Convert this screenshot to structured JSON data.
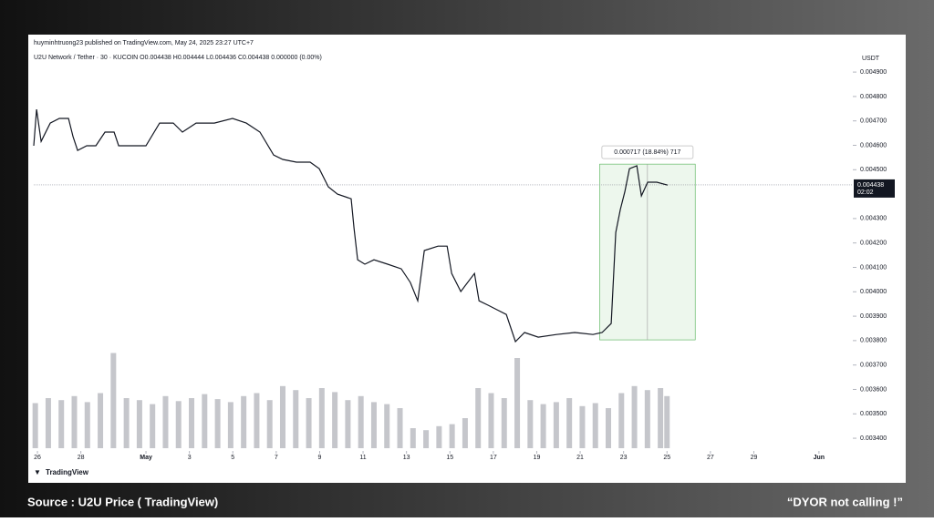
{
  "chart_data": {
    "type": "line",
    "header": "huyminhtruong23 published on TradingView.com, May 24, 2025 23:27 UTC+7",
    "title": "U2U Network / Tether · 30 · KUCOIN O0.004438 H0.004444 L0.004436 C0.004438 0.000000 (0.00%)",
    "y_axis_label": "USDT",
    "brand": "TradingView",
    "source": "Source : U2U Price ( TradingView)",
    "note": "“DYOR  not calling !”",
    "xlim": [
      -0.17,
      37.56
    ],
    "ylim": [
      0.003348,
      0.00499
    ],
    "xticks": [
      {
        "value": 0,
        "label": "26"
      },
      {
        "value": 2,
        "label": "28"
      },
      {
        "value": 5,
        "label": "May"
      },
      {
        "value": 7,
        "label": "3"
      },
      {
        "value": 9,
        "label": "5"
      },
      {
        "value": 11,
        "label": "7"
      },
      {
        "value": 13,
        "label": "9"
      },
      {
        "value": 15,
        "label": "11"
      },
      {
        "value": 17,
        "label": "13"
      },
      {
        "value": 19,
        "label": "15"
      },
      {
        "value": 21,
        "label": "17"
      },
      {
        "value": 23,
        "label": "19"
      },
      {
        "value": 25,
        "label": "21"
      },
      {
        "value": 27,
        "label": "23"
      },
      {
        "value": 29,
        "label": "25"
      },
      {
        "value": 31,
        "label": "27"
      },
      {
        "value": 33,
        "label": "29"
      },
      {
        "value": 36,
        "label": "Jun"
      }
    ],
    "yticks": [
      {
        "value": 0.0034,
        "label": "0.003400"
      },
      {
        "value": 0.0035,
        "label": "0.003500"
      },
      {
        "value": 0.0036,
        "label": "0.003600"
      },
      {
        "value": 0.0037,
        "label": "0.003700"
      },
      {
        "value": 0.0038,
        "label": "0.003800"
      },
      {
        "value": 0.0039,
        "label": "0.003900"
      },
      {
        "value": 0.004,
        "label": "0.004000"
      },
      {
        "value": 0.0041,
        "label": "0.004100"
      },
      {
        "value": 0.0042,
        "label": "0.004200"
      },
      {
        "value": 0.0043,
        "label": "0.004300"
      },
      {
        "value": 0.0045,
        "label": "0.004500"
      },
      {
        "value": 0.0046,
        "label": "0.004600"
      },
      {
        "value": 0.0047,
        "label": "0.004700"
      },
      {
        "value": 0.0048,
        "label": "0.004800"
      },
      {
        "value": 0.0049,
        "label": "0.004900"
      }
    ],
    "series": [
      {
        "color": "#131722",
        "x": [
          -0.17,
          -0.04,
          0.17,
          0.59,
          1.01,
          1.43,
          1.64,
          1.85,
          2.27,
          2.69,
          3.11,
          3.53,
          3.74,
          4.37,
          5.0,
          5.63,
          6.26,
          6.68,
          7.31,
          8.15,
          8.99,
          9.62,
          10.25,
          10.88,
          11.3,
          11.93,
          12.56,
          12.98,
          13.4,
          13.82,
          14.45,
          14.58,
          14.75,
          15.08,
          15.5,
          16.13,
          16.76,
          17.18,
          17.52,
          17.82,
          18.45,
          18.87,
          19.08,
          19.5,
          20.13,
          20.34,
          20.76,
          21.18,
          21.6,
          22.02,
          22.44,
          23.07,
          23.91,
          24.75,
          25.59,
          26.01,
          26.43,
          26.64,
          26.85,
          27.06,
          27.27,
          27.61,
          27.82,
          28.11,
          28.53,
          29.03
        ],
        "values": [
          0.004598,
          0.004747,
          0.004616,
          0.004691,
          0.00471,
          0.00471,
          0.004635,
          0.004579,
          0.004598,
          0.004598,
          0.004654,
          0.004654,
          0.004598,
          0.004598,
          0.004598,
          0.004691,
          0.004691,
          0.004654,
          0.004691,
          0.004691,
          0.00471,
          0.004691,
          0.004654,
          0.00456,
          0.004542,
          0.004531,
          0.004531,
          0.004504,
          0.00443,
          0.0044,
          0.004381,
          0.004262,
          0.004131,
          0.004113,
          0.004131,
          0.004113,
          0.004094,
          0.004038,
          0.003963,
          0.004169,
          0.004187,
          0.004187,
          0.004075,
          0.004001,
          0.004075,
          0.003963,
          0.003945,
          0.003926,
          0.003907,
          0.003796,
          0.003833,
          0.003814,
          0.003825,
          0.003833,
          0.003825,
          0.003833,
          0.00387,
          0.004243,
          0.004337,
          0.004411,
          0.004504,
          0.004516,
          0.004393,
          0.004449,
          0.004449,
          0.004437
        ]
      }
    ],
    "volume": {
      "color": "#9598a1",
      "ylim": [
        0,
        100
      ],
      "x": [
        -0.1,
        0.5,
        1.1,
        1.7,
        2.3,
        2.9,
        3.5,
        4.1,
        4.7,
        5.3,
        5.9,
        6.5,
        7.1,
        7.7,
        8.3,
        8.9,
        9.5,
        10.1,
        10.7,
        11.3,
        11.9,
        12.5,
        13.1,
        13.7,
        14.3,
        14.9,
        15.5,
        16.1,
        16.7,
        17.3,
        17.9,
        18.5,
        19.1,
        19.7,
        20.3,
        20.9,
        21.5,
        22.1,
        22.7,
        23.3,
        23.9,
        24.5,
        25.1,
        25.7,
        26.3,
        26.9,
        27.5,
        28.1,
        28.7,
        29.0
      ],
      "values": [
        45,
        50,
        48,
        52,
        46,
        55,
        95,
        50,
        48,
        44,
        52,
        47,
        50,
        54,
        49,
        46,
        52,
        55,
        48,
        62,
        58,
        50,
        60,
        56,
        48,
        52,
        46,
        44,
        40,
        20,
        18,
        22,
        24,
        30,
        60,
        55,
        50,
        90,
        48,
        44,
        46,
        50,
        42,
        45,
        40,
        55,
        62,
        58,
        60,
        52
      ]
    },
    "measure": {
      "label": "0.000717 (18.84%) 717",
      "x": [
        25.9,
        30.3
      ],
      "y": [
        0.003803,
        0.004523
      ],
      "color": "#4caf50"
    },
    "last_price": {
      "value": 0.004438,
      "label": "0.004438",
      "countdown": "02:02"
    }
  }
}
